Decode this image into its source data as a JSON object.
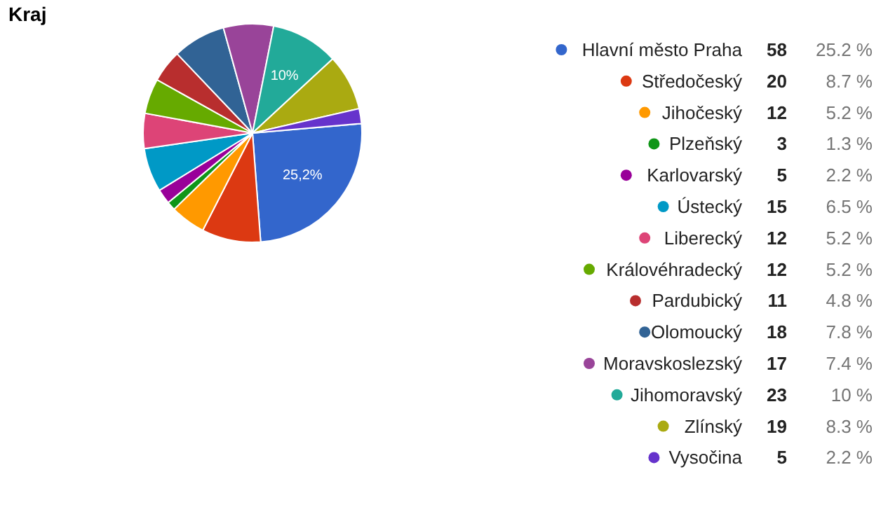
{
  "chart_data": [
    {
      "type": "pie",
      "title": "Kraj",
      "categories": [
        "Hlavní město Praha",
        "Středočeský",
        "Jihočeský",
        "Plzeňský",
        "Karlovarský",
        "Ústecký",
        "Liberecký",
        "Královéhradecký",
        "Pardubický",
        "Olomoucký",
        "Moravskoslezský",
        "Jihomoravský",
        "Zlínský",
        "Vysočina"
      ],
      "values": [
        25.2,
        8.7,
        5.2,
        1.3,
        2.2,
        6.5,
        5.2,
        5.2,
        4.8,
        7.8,
        7.4,
        10,
        8.3,
        2.2
      ],
      "value_labels": [
        "25.2 %",
        "8.7 %",
        "5.2 %",
        "1.3 %",
        "2.2 %",
        "6.5 %",
        "5.2 %",
        "5.2 %",
        "4.8 %",
        "7.8 %",
        "7.4 %",
        "10 %",
        "8.3 %",
        "2.2 %"
      ],
      "colors": [
        "#3366cc",
        "#dc3912",
        "#ff9900",
        "#109618",
        "#990099",
        "#0099c6",
        "#dd4477",
        "#66aa00",
        "#b82e2e",
        "#316395",
        "#994499",
        "#22aa99",
        "#aaaa11",
        "#6633cc"
      ],
      "annotations": [
        {
          "text": "25,2%",
          "x": "Hlavní město Praha"
        },
        {
          "text": "10%",
          "x": "Jihomoravský"
        }
      ],
      "legend": "right"
    },
    {
      "type": "other",
      "annotations": [
        "58",
        "20",
        "12",
        "3",
        "5",
        "15",
        "12",
        "12",
        "11",
        "18",
        "17",
        "23",
        "19",
        "5"
      ]
    }
  ]
}
